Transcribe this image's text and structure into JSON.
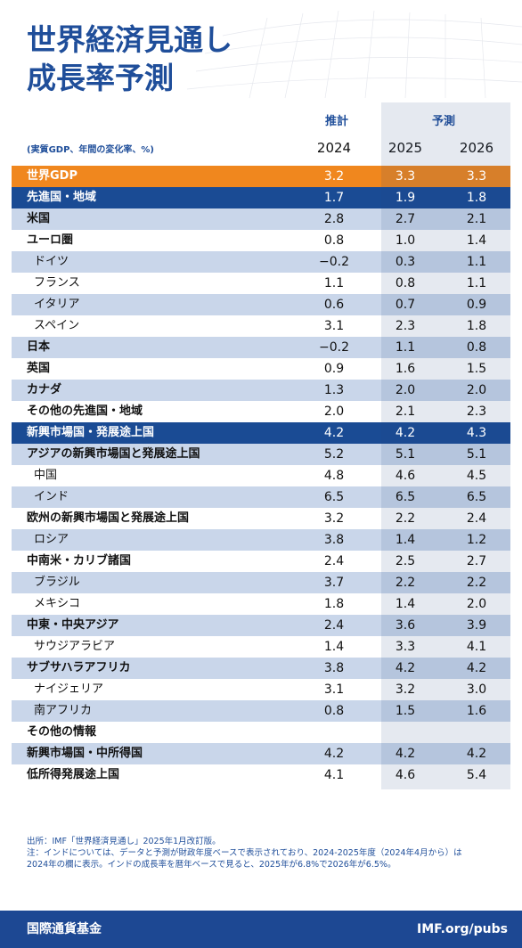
{
  "header": {
    "title": [
      "世界経済見通し",
      "成長率予測"
    ]
  },
  "table": {
    "estimate_label": "推計",
    "forecast_label": "予測",
    "unit": "(実質GDP、年間の変化率、%)",
    "years": [
      "2024",
      "2025",
      "2026"
    ],
    "rows": [
      {
        "label": "世界GDP",
        "values": [
          "3.2",
          "3.3",
          "3.3"
        ]
      },
      {
        "label": "先進国・地域",
        "values": [
          "1.7",
          "1.9",
          "1.8"
        ]
      },
      {
        "label": "米国",
        "values": [
          "2.8",
          "2.7",
          "2.1"
        ]
      },
      {
        "label": "ユーロ圏",
        "values": [
          "0.8",
          "1.0",
          "1.4"
        ]
      },
      {
        "label": "ドイツ",
        "values": [
          "−0.2",
          "0.3",
          "1.1"
        ]
      },
      {
        "label": "フランス",
        "values": [
          "1.1",
          "0.8",
          "1.1"
        ]
      },
      {
        "label": "イタリア",
        "values": [
          "0.6",
          "0.7",
          "0.9"
        ]
      },
      {
        "label": "スペイン",
        "values": [
          "3.1",
          "2.3",
          "1.8"
        ]
      },
      {
        "label": "日本",
        "values": [
          "−0.2",
          "1.1",
          "0.8"
        ]
      },
      {
        "label": "英国",
        "values": [
          "0.9",
          "1.6",
          "1.5"
        ]
      },
      {
        "label": "カナダ",
        "values": [
          "1.3",
          "2.0",
          "2.0"
        ]
      },
      {
        "label": "その他の先進国・地域",
        "values": [
          "2.0",
          "2.1",
          "2.3"
        ]
      },
      {
        "label": "新興市場国・発展途上国",
        "values": [
          "4.2",
          "4.2",
          "4.3"
        ]
      },
      {
        "label": "アジアの新興市場国と発展途上国",
        "values": [
          "5.2",
          "5.1",
          "5.1"
        ]
      },
      {
        "label": "中国",
        "values": [
          "4.8",
          "4.6",
          "4.5"
        ]
      },
      {
        "label": "インド",
        "values": [
          "6.5",
          "6.5",
          "6.5"
        ]
      },
      {
        "label": "欧州の新興市場国と発展途上国",
        "values": [
          "3.2",
          "2.2",
          "2.4"
        ]
      },
      {
        "label": "ロシア",
        "values": [
          "3.8",
          "1.4",
          "1.2"
        ]
      },
      {
        "label": "中南米・カリブ諸国",
        "values": [
          "2.4",
          "2.5",
          "2.7"
        ]
      },
      {
        "label": "ブラジル",
        "values": [
          "3.7",
          "2.2",
          "2.2"
        ]
      },
      {
        "label": "メキシコ",
        "values": [
          "1.8",
          "1.4",
          "2.0"
        ]
      },
      {
        "label": "中東・中央アジア",
        "values": [
          "2.4",
          "3.6",
          "3.9"
        ]
      },
      {
        "label": "サウジアラビア",
        "values": [
          "1.4",
          "3.3",
          "4.1"
        ]
      },
      {
        "label": "サブサハラアフリカ",
        "values": [
          "3.8",
          "4.2",
          "4.2"
        ]
      },
      {
        "label": "ナイジェリア",
        "values": [
          "3.1",
          "3.2",
          "3.0"
        ]
      },
      {
        "label": "南アフリカ",
        "values": [
          "0.8",
          "1.5",
          "1.6"
        ]
      },
      {
        "label": "その他の情報",
        "values": []
      },
      {
        "label": "新興市場国・中所得国",
        "values": [
          "4.2",
          "4.2",
          "4.2"
        ]
      },
      {
        "label": "低所得発展途上国",
        "values": [
          "4.1",
          "4.6",
          "5.4"
        ]
      }
    ]
  },
  "notes": [
    "出所：IMF「世界経済見通し」2025年1月改訂版。",
    "注：インドについては、データと予測が財政年度ベースで表示されており、2024-2025年度（2024年4月から）は",
    "2024年の欄に表示。インドの成長率を暦年ベースで見ると、2025年が6.8%で2026年が6.5%。"
  ],
  "footer": {
    "org": "国際通貨基金",
    "url": "IMF.org/pubs"
  }
}
